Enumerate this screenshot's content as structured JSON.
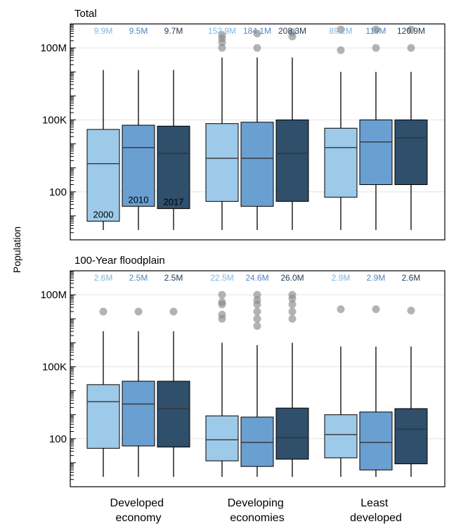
{
  "chart_data": {
    "type": "boxplot",
    "ylabel": "Population",
    "yscale": "log",
    "ylim": [
      1,
      1000000000
    ],
    "yticks": [
      {
        "value": 100,
        "label": "100"
      },
      {
        "value": 100000,
        "label": "100K"
      },
      {
        "value": 100000000,
        "label": "100M"
      }
    ],
    "grid": "horizontal",
    "categories": [
      {
        "line1": "Developed",
        "line2": "economy"
      },
      {
        "line1": "Developing",
        "line2": "economies"
      },
      {
        "line1": "Least",
        "line2": "developed"
      }
    ],
    "series": [
      {
        "name": "2000",
        "color": "#9ecae9"
      },
      {
        "name": "2010",
        "color": "#6a9fd2"
      },
      {
        "name": "2017",
        "color": "#2f4f6b"
      }
    ],
    "annotation_colors": [
      "#7fb6e0",
      "#4f86c0",
      "#1f3b57"
    ],
    "panels": [
      {
        "title": "Total",
        "groups": [
          {
            "annotations": [
              "9.9M",
              "9.5M",
              "9.7M"
            ],
            "boxes": [
              {
                "wlo": 1,
                "q1": 6,
                "median": 1500,
                "q3": 40000,
                "whi": 12000000,
                "outliers": []
              },
              {
                "wlo": 1,
                "q1": 25,
                "median": 7000,
                "q3": 60000,
                "whi": 12000000,
                "outliers": []
              },
              {
                "wlo": 1,
                "q1": 20,
                "median": 4000,
                "q3": 55000,
                "whi": 12000000,
                "outliers": []
              }
            ]
          },
          {
            "annotations": [
              "152.9M",
              "184.1M",
              "208.3M"
            ],
            "boxes": [
              {
                "wlo": 1,
                "q1": 40,
                "median": 2500,
                "q3": 70000,
                "whi": 40000000,
                "outliers": [
                  100000000,
                  170000000,
                  250000000,
                  350000000
                ]
              },
              {
                "wlo": 1,
                "q1": 25,
                "median": 2500,
                "q3": 80000,
                "whi": 40000000,
                "outliers": [
                  100000000,
                  400000000
                ]
              },
              {
                "wlo": 1,
                "q1": 40,
                "median": 4000,
                "q3": 100000,
                "whi": 40000000,
                "outliers": [
                  300000000,
                  450000000
                ]
              }
            ]
          },
          {
            "annotations": [
              "89.2M",
              "119M",
              "120.9M"
            ],
            "boxes": [
              {
                "wlo": 1,
                "q1": 60,
                "median": 7000,
                "q3": 45000,
                "whi": 10000000,
                "outliers": [
                  80000000,
                  1000000000
                ]
              },
              {
                "wlo": 1,
                "q1": 200,
                "median": 12000,
                "q3": 100000,
                "whi": 10000000,
                "outliers": [
                  100000000,
                  1300000000
                ]
              },
              {
                "wlo": 1,
                "q1": 200,
                "median": 18000,
                "q3": 100000,
                "whi": 10000000,
                "outliers": [
                  100000000,
                  1300000000
                ]
              }
            ]
          }
        ]
      },
      {
        "title": "100-Year floodplain",
        "groups": [
          {
            "annotations": [
              "2.6M",
              "2.5M",
              "2.5M"
            ],
            "boxes": [
              {
                "wlo": 1,
                "q1": 40,
                "median": 3500,
                "q3": 18000,
                "whi": 3000000,
                "outliers": [
                  20000000
                ]
              },
              {
                "wlo": 1,
                "q1": 50,
                "median": 2800,
                "q3": 25000,
                "whi": 3000000,
                "outliers": [
                  20000000
                ]
              },
              {
                "wlo": 1,
                "q1": 45,
                "median": 1800,
                "q3": 25000,
                "whi": 3000000,
                "outliers": [
                  20000000
                ]
              }
            ]
          },
          {
            "annotations": [
              "22.5M",
              "24.6M",
              "26.0M"
            ],
            "boxes": [
              {
                "wlo": 1,
                "q1": 12,
                "median": 90,
                "q3": 900,
                "whi": 1000000,
                "outliers": [
                  10000000,
                  15000000,
                  40000000,
                  50000000,
                  100000000
                ]
              },
              {
                "wlo": 1,
                "q1": 7,
                "median": 70,
                "q3": 800,
                "whi": 800000,
                "outliers": [
                  5000000,
                  10000000,
                  20000000,
                  40000000,
                  60000000,
                  100000000
                ]
              },
              {
                "wlo": 1,
                "q1": 14,
                "median": 110,
                "q3": 1900,
                "whi": 1000000,
                "outliers": [
                  10000000,
                  20000000,
                  40000000,
                  70000000,
                  100000000
                ]
              }
            ]
          },
          {
            "annotations": [
              "2.9M",
              "2.9M",
              "2.6M"
            ],
            "boxes": [
              {
                "wlo": 1,
                "q1": 16,
                "median": 150,
                "q3": 1000,
                "whi": 700000,
                "outliers": [
                  25000000
                ]
              },
              {
                "wlo": 1,
                "q1": 5,
                "median": 70,
                "q3": 1300,
                "whi": 700000,
                "outliers": [
                  25000000
                ]
              },
              {
                "wlo": 1,
                "q1": 9,
                "median": 250,
                "q3": 1800,
                "whi": 700000,
                "outliers": [
                  22000000
                ]
              }
            ]
          }
        ]
      }
    ]
  }
}
